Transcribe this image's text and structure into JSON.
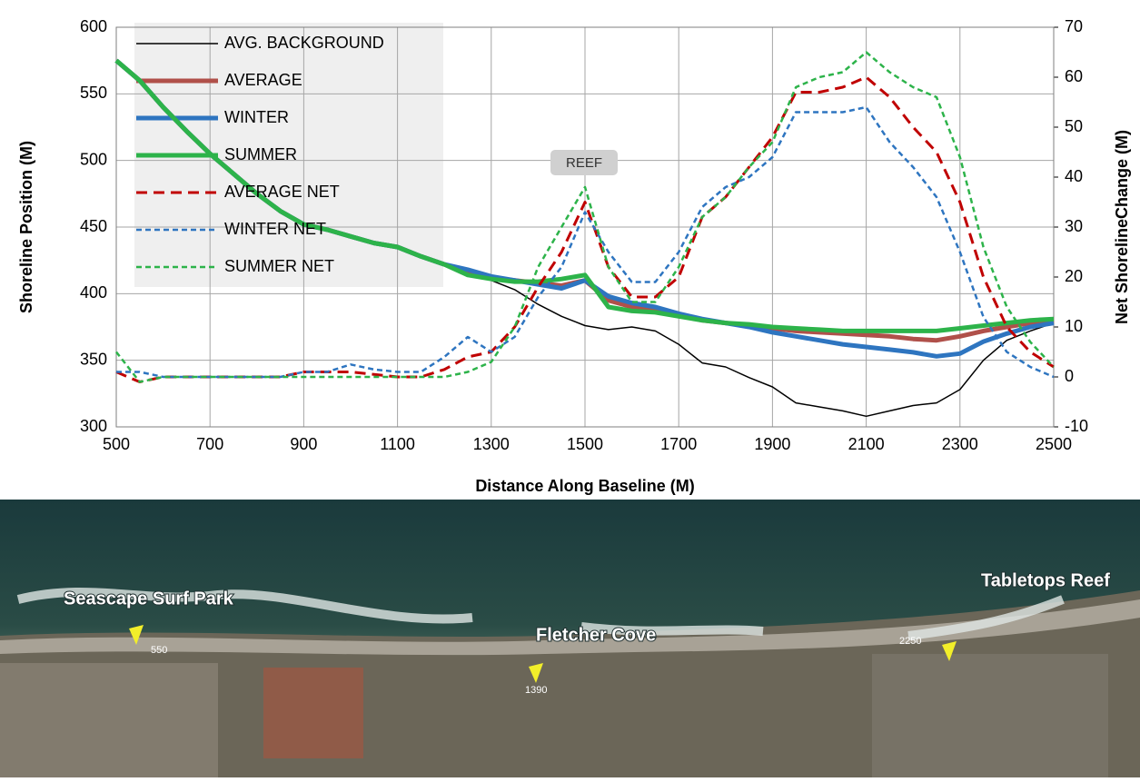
{
  "chart_data": {
    "type": "line",
    "x_label": "Distance Along Baseline (M)",
    "y_label": "Shoreline Position (M)",
    "y2_label": "Net ShorelineChange (M)",
    "xlim": [
      500,
      2500
    ],
    "xticks": [
      500,
      700,
      900,
      1100,
      1300,
      1500,
      1700,
      1900,
      2100,
      2300,
      2500
    ],
    "ylim": [
      300,
      600
    ],
    "yticks": [
      300,
      350,
      400,
      450,
      500,
      550,
      600
    ],
    "y2lim": [
      -10,
      70
    ],
    "y2ticks": [
      -10,
      0,
      10,
      20,
      30,
      40,
      50,
      60,
      70
    ],
    "grid": true,
    "legend": "upper left",
    "annotations": [
      "REEF"
    ],
    "x": [
      500,
      550,
      600,
      650,
      700,
      750,
      800,
      850,
      900,
      950,
      1000,
      1050,
      1100,
      1150,
      1200,
      1250,
      1300,
      1350,
      1400,
      1450,
      1500,
      1550,
      1600,
      1650,
      1700,
      1750,
      1800,
      1850,
      1900,
      1950,
      2000,
      2050,
      2100,
      2150,
      2200,
      2250,
      2300,
      2350,
      2400,
      2450,
      2500
    ],
    "series": [
      {
        "name": "AVG. BACKGROUND",
        "color": "#000000",
        "values": [
          575,
          560,
          540,
          522,
          505,
          490,
          475,
          462,
          452,
          448,
          443,
          438,
          435,
          428,
          422,
          418,
          410,
          403,
          392,
          383,
          376,
          373,
          375,
          372,
          362,
          348,
          345,
          337,
          330,
          318,
          315,
          312,
          308,
          312,
          316,
          318,
          328,
          350,
          365,
          372,
          378
        ]
      },
      {
        "name": "AVERAGE",
        "color": "#b0504a",
        "values": [
          575,
          560,
          540,
          522,
          505,
          490,
          475,
          462,
          452,
          448,
          443,
          438,
          435,
          428,
          422,
          415,
          412,
          410,
          408,
          406,
          410,
          395,
          390,
          388,
          384,
          380,
          378,
          376,
          374,
          372,
          371,
          370,
          369,
          368,
          366,
          365,
          368,
          372,
          375,
          378,
          380
        ]
      },
      {
        "name": "WINTER",
        "color": "#2e75c0",
        "values": [
          575,
          560,
          540,
          522,
          505,
          490,
          475,
          462,
          452,
          448,
          443,
          438,
          435,
          428,
          422,
          418,
          413,
          410,
          407,
          404,
          410,
          398,
          393,
          390,
          385,
          381,
          378,
          375,
          371,
          368,
          365,
          362,
          360,
          358,
          356,
          353,
          355,
          364,
          370,
          375,
          378
        ]
      },
      {
        "name": "SUMMER",
        "color": "#2db34a",
        "values": [
          575,
          560,
          540,
          522,
          505,
          490,
          475,
          462,
          452,
          448,
          443,
          438,
          435,
          428,
          422,
          414,
          411,
          409,
          409,
          411,
          414,
          390,
          387,
          386,
          383,
          380,
          378,
          377,
          375,
          374,
          373,
          372,
          372,
          372,
          372,
          372,
          374,
          376,
          378,
          380,
          381
        ]
      },
      {
        "name": "AVERAGE NET",
        "color": "#c00000",
        "axis": "y2",
        "values": [
          1,
          -1,
          0,
          0,
          0,
          0,
          0,
          0,
          1,
          1,
          1,
          0.5,
          0,
          0,
          1.5,
          4,
          5,
          10,
          18,
          25,
          35,
          22,
          16,
          16,
          20,
          32,
          36,
          42,
          48,
          57,
          57,
          58,
          60,
          56,
          50,
          45,
          35,
          20,
          10,
          5,
          2
        ]
      },
      {
        "name": "WINTER NET",
        "color": "#2e75c0",
        "axis": "y2",
        "values": [
          1,
          1,
          0,
          0,
          0,
          0,
          0,
          0,
          1,
          1,
          2.5,
          1.5,
          1,
          1,
          4,
          8,
          5,
          8,
          16,
          22,
          33,
          25,
          19,
          19,
          25,
          34,
          38,
          40,
          44,
          53,
          53,
          53,
          54,
          47,
          42,
          36,
          25,
          12,
          5,
          2,
          0
        ]
      },
      {
        "name": "SUMMER NET",
        "color": "#2db34a",
        "axis": "y2",
        "values": [
          5,
          -1,
          0,
          0,
          0,
          0,
          0,
          0,
          0,
          0,
          0,
          0,
          0,
          0,
          0,
          1,
          3,
          10,
          22,
          30,
          38,
          22,
          15,
          15,
          22,
          32,
          36,
          42,
          47,
          58,
          60,
          61,
          65,
          61,
          58,
          56,
          44,
          26,
          14,
          7,
          2
        ]
      }
    ]
  },
  "map": {
    "labels": [
      "Seascape Surf Park",
      "Fletcher Cove",
      "Tabletops Reef"
    ],
    "pins": [
      "550",
      "1390",
      "2250"
    ]
  }
}
